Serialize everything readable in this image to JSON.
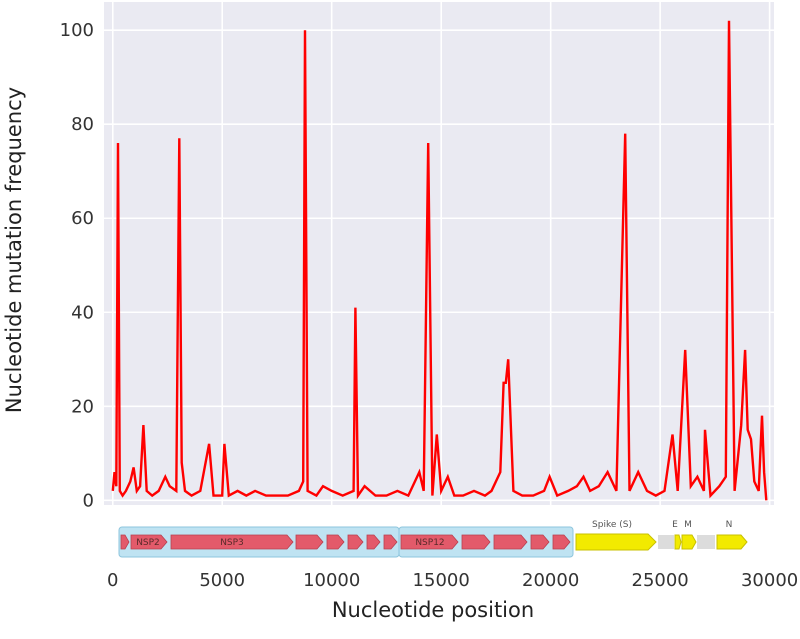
{
  "colors": {
    "plot_background": "#eaeaf2",
    "grid": "#ffffff",
    "series": "#ff0000",
    "orf_region": "#bfe3f2",
    "nsp_arrow": "#e35a6a",
    "spike_arrow": "#f2ea00",
    "accessory_box": "#dcdcdc"
  },
  "chart_data": {
    "type": "line",
    "xlabel": "Nucleotide position",
    "ylabel": "Nucleotide mutation frequency",
    "xlim": [
      -400,
      30200
    ],
    "ylim": [
      -1,
      106
    ],
    "grid": true,
    "xticks": [
      0,
      5000,
      10000,
      15000,
      20000,
      25000,
      30000
    ],
    "xtick_labels": [
      "0",
      "5000",
      "10000",
      "15000",
      "20000",
      "25000",
      "30000"
    ],
    "yticks": [
      0,
      20,
      40,
      60,
      80,
      100
    ],
    "ytick_labels": [
      "0",
      "20",
      "40",
      "60",
      "80",
      "100"
    ],
    "series": [
      {
        "points": [
          [
            0,
            2
          ],
          [
            80,
            6
          ],
          [
            160,
            3
          ],
          [
            240,
            76
          ],
          [
            320,
            2
          ],
          [
            450,
            1
          ],
          [
            600,
            2
          ],
          [
            800,
            4
          ],
          [
            950,
            7
          ],
          [
            1100,
            2
          ],
          [
            1250,
            3
          ],
          [
            1400,
            16
          ],
          [
            1550,
            2
          ],
          [
            1800,
            1
          ],
          [
            2100,
            2
          ],
          [
            2400,
            5
          ],
          [
            2600,
            3
          ],
          [
            2900,
            2
          ],
          [
            3037,
            77
          ],
          [
            3150,
            8
          ],
          [
            3300,
            2
          ],
          [
            3600,
            1
          ],
          [
            4000,
            2
          ],
          [
            4400,
            12
          ],
          [
            4600,
            1
          ],
          [
            5000,
            1
          ],
          [
            5100,
            12
          ],
          [
            5300,
            1
          ],
          [
            5700,
            2
          ],
          [
            6100,
            1
          ],
          [
            6500,
            2
          ],
          [
            7000,
            1
          ],
          [
            7500,
            1
          ],
          [
            8000,
            1
          ],
          [
            8500,
            2
          ],
          [
            8700,
            4
          ],
          [
            8782,
            100
          ],
          [
            8900,
            2
          ],
          [
            9300,
            1
          ],
          [
            9600,
            3
          ],
          [
            10000,
            2
          ],
          [
            10500,
            1
          ],
          [
            11000,
            2
          ],
          [
            11083,
            41
          ],
          [
            11200,
            1
          ],
          [
            11500,
            3
          ],
          [
            12000,
            1
          ],
          [
            12500,
            1
          ],
          [
            13000,
            2
          ],
          [
            13500,
            1
          ],
          [
            14000,
            6
          ],
          [
            14200,
            2
          ],
          [
            14408,
            76
          ],
          [
            14600,
            1
          ],
          [
            14800,
            14
          ],
          [
            15000,
            2
          ],
          [
            15300,
            5
          ],
          [
            15600,
            1
          ],
          [
            16000,
            1
          ],
          [
            16500,
            2
          ],
          [
            17000,
            1
          ],
          [
            17300,
            2
          ],
          [
            17700,
            6
          ],
          [
            17850,
            25
          ],
          [
            17950,
            25
          ],
          [
            18060,
            30
          ],
          [
            18300,
            2
          ],
          [
            18700,
            1
          ],
          [
            19200,
            1
          ],
          [
            19700,
            2
          ],
          [
            19950,
            5
          ],
          [
            20300,
            1
          ],
          [
            20800,
            2
          ],
          [
            21200,
            3
          ],
          [
            21500,
            5
          ],
          [
            21800,
            2
          ],
          [
            22200,
            3
          ],
          [
            22600,
            6
          ],
          [
            23000,
            2
          ],
          [
            23403,
            78
          ],
          [
            23600,
            2
          ],
          [
            24000,
            6
          ],
          [
            24400,
            2
          ],
          [
            24800,
            1
          ],
          [
            25200,
            2
          ],
          [
            25563,
            14
          ],
          [
            25800,
            2
          ],
          [
            26144,
            32
          ],
          [
            26400,
            3
          ],
          [
            26700,
            5
          ],
          [
            27000,
            2
          ],
          [
            27050,
            15
          ],
          [
            27300,
            1
          ],
          [
            27700,
            3
          ],
          [
            28000,
            5
          ],
          [
            28144,
            102
          ],
          [
            28400,
            2
          ],
          [
            28700,
            16
          ],
          [
            28881,
            32
          ],
          [
            29000,
            15
          ],
          [
            29150,
            13
          ],
          [
            29300,
            4
          ],
          [
            29500,
            2
          ],
          [
            29650,
            18
          ],
          [
            29750,
            6
          ],
          [
            29850,
            0
          ]
        ]
      }
    ]
  },
  "genome_map": {
    "orf1a_labels": [
      "NSP2",
      "NSP3"
    ],
    "orf1b_labels": [
      "NSP12"
    ],
    "spike_label": "Spike (S)",
    "e_label": "E",
    "m_label": "M",
    "n_label": "N"
  }
}
